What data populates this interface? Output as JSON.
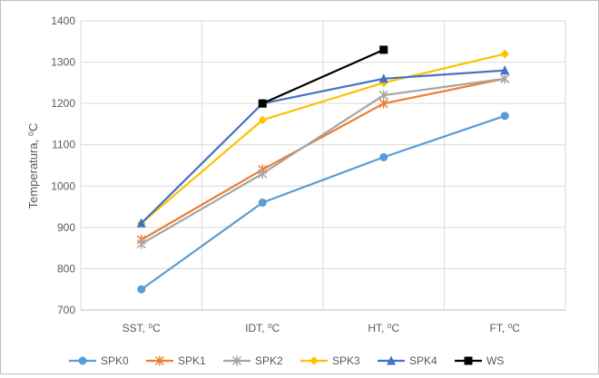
{
  "chart_data": {
    "type": "line",
    "title": "",
    "xlabel": "",
    "ylabel": "Temperatura, ⁰C",
    "categories": [
      "SST, ⁰C",
      "IDT, ⁰C",
      "HT, ⁰C",
      "FT, ⁰C"
    ],
    "ylim": [
      700,
      1400
    ],
    "yticks": [
      700,
      800,
      900,
      1000,
      1100,
      1200,
      1300,
      1400
    ],
    "grid": true,
    "legend": "bottom",
    "series": [
      {
        "name": "SPK0",
        "color": "#5b9bd5",
        "marker": "circle",
        "values": [
          750,
          960,
          1070,
          1170
        ]
      },
      {
        "name": "SPK1",
        "color": "#ed7d31",
        "marker": "star",
        "values": [
          870,
          1040,
          1200,
          1260
        ]
      },
      {
        "name": "SPK2",
        "color": "#a5a5a5",
        "marker": "star",
        "values": [
          860,
          1030,
          1220,
          1260
        ]
      },
      {
        "name": "SPK3",
        "color": "#ffc000",
        "marker": "diamond",
        "values": [
          910,
          1160,
          1250,
          1320
        ]
      },
      {
        "name": "SPK4",
        "color": "#4472c4",
        "marker": "triangle",
        "values": [
          910,
          1200,
          1260,
          1280
        ]
      },
      {
        "name": "WS",
        "color": "#000000",
        "marker": "square",
        "values": [
          null,
          1200,
          1330,
          null
        ]
      }
    ]
  }
}
